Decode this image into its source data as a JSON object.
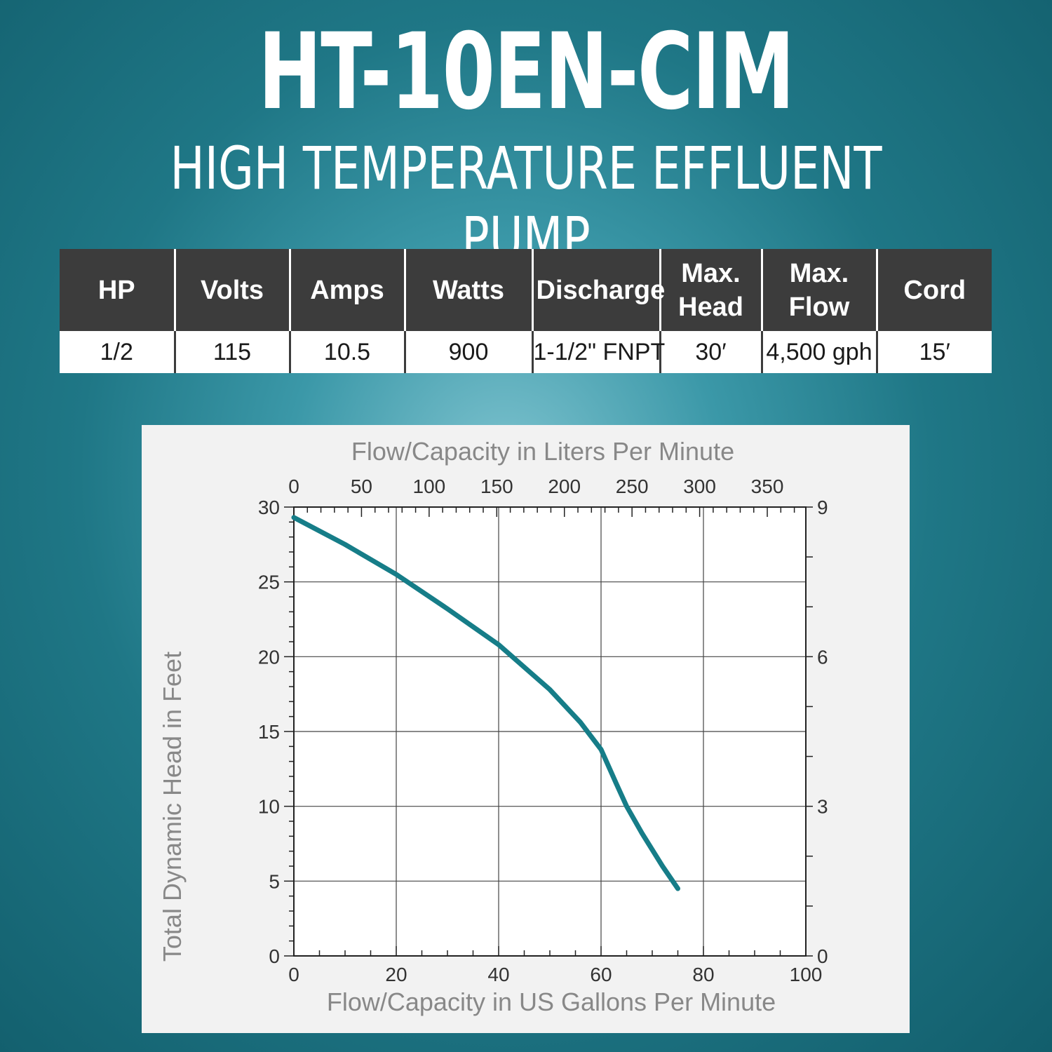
{
  "header": {
    "title": "HT-10EN-CIM",
    "subtitle": "HIGH TEMPERATURE EFFLUENT PUMP"
  },
  "spec_table": {
    "headers": [
      "HP",
      "Volts",
      "Amps",
      "Watts",
      "Discharge",
      "Max. Head",
      "Max. Flow",
      "Cord"
    ],
    "values": [
      "1/2",
      "115",
      "10.5",
      "900",
      "1-1/2\" FNPT",
      "30′",
      "4,500 gph",
      "15′"
    ]
  },
  "chart_data": {
    "type": "line",
    "xlabel": "Flow/Capacity in US Gallons Per Minute",
    "ylabel": "Total Dynamic Head in Feet",
    "x2label": "Flow/Capacity in Liters Per Minute",
    "xlim": [
      0,
      100
    ],
    "ylim": [
      0,
      30
    ],
    "x2lim": [
      0,
      378.5
    ],
    "y2lim": [
      0,
      9
    ],
    "xticks": [
      0,
      20,
      40,
      60,
      80,
      100
    ],
    "yticks": [
      0,
      5,
      10,
      15,
      20,
      25,
      30
    ],
    "x2ticks": [
      0,
      50,
      100,
      150,
      200,
      250,
      300,
      350
    ],
    "y2ticks": [
      0,
      3,
      6,
      9
    ],
    "grid": true,
    "series": [
      {
        "color": "#167d88",
        "x": [
          0,
          10,
          20,
          30,
          40,
          50,
          56,
          60,
          63,
          65,
          68,
          72,
          75
        ],
        "y": [
          29.3,
          27.5,
          25.5,
          23.2,
          20.8,
          17.8,
          15.6,
          13.8,
          11.5,
          10.0,
          8.2,
          6.0,
          4.5
        ]
      }
    ]
  }
}
